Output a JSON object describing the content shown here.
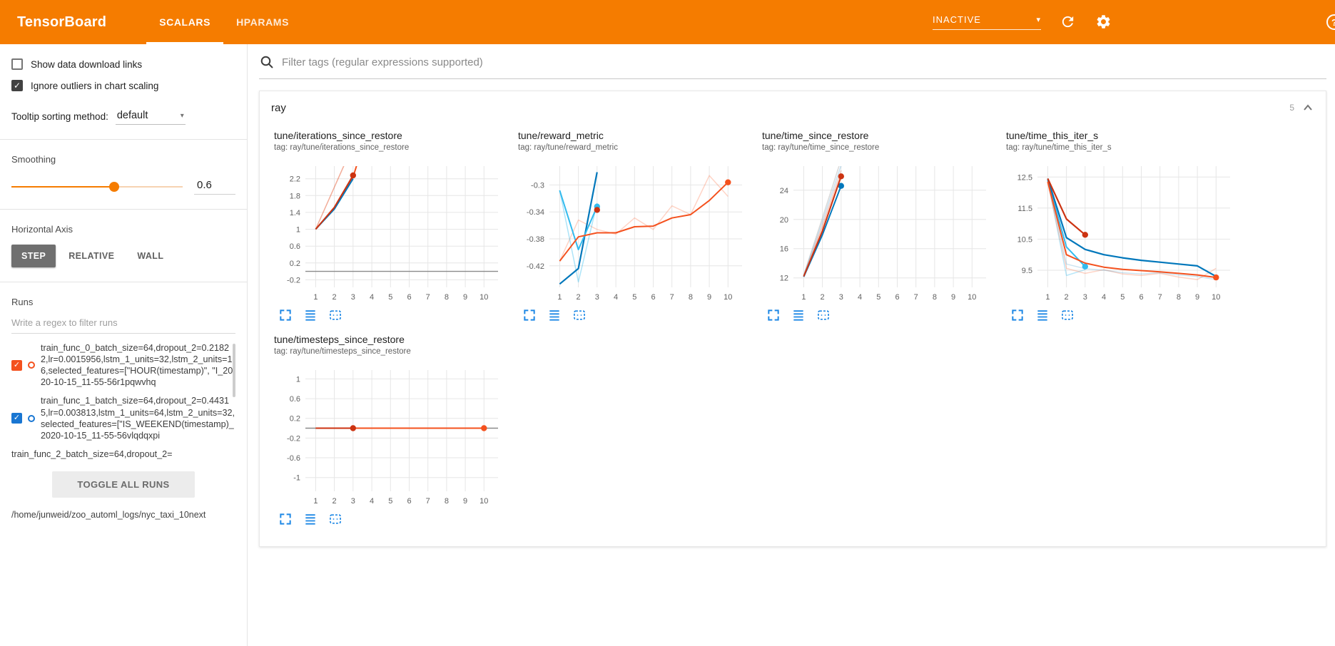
{
  "header": {
    "title": "TensorBoard",
    "tabs": [
      {
        "label": "SCALARS",
        "active": true
      },
      {
        "label": "HPARAMS",
        "active": false
      }
    ],
    "status_selector": {
      "value": "INACTIVE"
    },
    "icons": [
      "refresh-icon",
      "settings-gear-icon",
      "help-icon"
    ],
    "accent_color": "#f57c00"
  },
  "sidebar": {
    "options": [
      {
        "label": "Show data download links",
        "checked": false
      },
      {
        "label": "Ignore outliers in chart scaling",
        "checked": true
      }
    ],
    "tooltip_sort": {
      "label": "Tooltip sorting method:",
      "value": "default"
    },
    "smoothing": {
      "label": "Smoothing",
      "value": "0.6",
      "fraction": 0.6
    },
    "horizontal_axis": {
      "label": "Horizontal Axis",
      "options": [
        "STEP",
        "RELATIVE",
        "WALL"
      ],
      "selected": "STEP"
    },
    "runs": {
      "label": "Runs",
      "filter_placeholder": "Write a regex to filter runs",
      "items": [
        {
          "label": "train_func_0_batch_size=64,dropout_2=0.21822,lr=0.0015956,lstm_1_units=32,lstm_2_units=16,selected_features=[\"HOUR(timestamp)\", \"I_2020-10-15_11-55-56r1pqwvhq",
          "checked": true,
          "color": "#f4511e"
        },
        {
          "label": "train_func_1_batch_size=64,dropout_2=0.44315,lr=0.003813,lstm_1_units=64,lstm_2_units=32,selected_features=[\"IS_WEEKEND(timestamp)_2020-10-15_11-55-56vlqdqxpi",
          "checked": true,
          "color": "#1976d2"
        },
        {
          "label": "train_func_2_batch_size=64,dropout_2=",
          "checked": null,
          "color": null
        }
      ],
      "toggle_all_label": "TOGGLE ALL RUNS",
      "log_path": "/home/junweid/zoo_automl_logs/nyc_taxi_10next"
    }
  },
  "main": {
    "filter_placeholder": "Filter tags (regular expressions supported)",
    "group": {
      "name": "ray",
      "count": "5"
    }
  },
  "chart_data": [
    {
      "id": "c1",
      "type": "line",
      "title": "tune/iterations_since_restore",
      "tag": "tag: ray/tune/iterations_since_restore",
      "xlim": [
        0.45,
        10.75
      ],
      "ylim": [
        -0.38,
        2.5
      ],
      "xticks": [
        1,
        2,
        3,
        4,
        5,
        6,
        7,
        8,
        9,
        10
      ],
      "yticks": [
        -0.2,
        0.2,
        0.6,
        1,
        1.4,
        1.8,
        2.2
      ],
      "zero_line": 0,
      "series": [
        {
          "name": "run0 raw",
          "color": "#ff7043",
          "opacity": 0.3,
          "width": 1.5,
          "end_dot": false,
          "points": [
            [
              1,
              1
            ],
            [
              2,
              2
            ],
            [
              3,
              3
            ]
          ]
        },
        {
          "name": "run2 raw",
          "color": "#cc3311",
          "opacity": 0.25,
          "width": 1.5,
          "end_dot": false,
          "points": [
            [
              1,
              1
            ],
            [
              2,
              2
            ],
            [
              3,
              3
            ]
          ]
        },
        {
          "name": "run0 smoothed",
          "color": "#f4511e",
          "opacity": 1,
          "width": 2,
          "end_dot": false,
          "points": [
            [
              1,
              1
            ],
            [
              2,
              1.5
            ],
            [
              3,
              2.24
            ],
            [
              3.6,
              3.1
            ]
          ]
        },
        {
          "name": "run1 smoothed",
          "color": "#0077bb",
          "opacity": 1,
          "width": 2,
          "end_dot": false,
          "points": [
            [
              1,
              1
            ],
            [
              2,
              1.48
            ],
            [
              3,
              2.2
            ]
          ]
        },
        {
          "name": "run2 smoothed",
          "color": "#cc3311",
          "opacity": 1,
          "width": 2,
          "end_dot": true,
          "points": [
            [
              1,
              1
            ],
            [
              2,
              1.52
            ],
            [
              3,
              2.28
            ]
          ]
        }
      ]
    },
    {
      "id": "c2",
      "type": "line",
      "title": "tune/reward_metric",
      "tag": "tag: ray/tune/reward_metric",
      "xlim": [
        0.45,
        10.75
      ],
      "ylim": [
        -0.452,
        -0.272
      ],
      "xticks": [
        1,
        2,
        3,
        4,
        5,
        6,
        7,
        8,
        9,
        10
      ],
      "yticks": [
        -0.42,
        -0.38,
        -0.34,
        -0.3
      ],
      "series": [
        {
          "name": "run0 raw",
          "color": "#ff7043",
          "opacity": 0.3,
          "width": 1.5,
          "end_dot": false,
          "points": [
            [
              1,
              -0.413
            ],
            [
              2,
              -0.352
            ],
            [
              3,
              -0.366
            ],
            [
              4,
              -0.373
            ],
            [
              5,
              -0.349
            ],
            [
              6,
              -0.366
            ],
            [
              7,
              -0.331
            ],
            [
              8,
              -0.344
            ],
            [
              9,
              -0.286
            ],
            [
              10,
              -0.317
            ]
          ]
        },
        {
          "name": "run3 raw",
          "color": "#33bbee",
          "opacity": 0.4,
          "width": 1.5,
          "end_dot": false,
          "points": [
            [
              1,
              -0.308
            ],
            [
              2,
              -0.444
            ],
            [
              3,
              -0.327
            ]
          ]
        },
        {
          "name": "run1 smoothed",
          "color": "#0077bb",
          "opacity": 1,
          "width": 2.2,
          "end_dot": false,
          "points": [
            [
              1,
              -0.447
            ],
            [
              2,
              -0.424
            ],
            [
              3,
              -0.281
            ]
          ]
        },
        {
          "name": "run3 smoothed",
          "color": "#33bbee",
          "opacity": 1,
          "width": 2,
          "end_dot": true,
          "points": [
            [
              1,
              -0.308
            ],
            [
              2,
              -0.396
            ],
            [
              3,
              -0.332
            ]
          ]
        },
        {
          "name": "run2 final",
          "color": "#cc3311",
          "opacity": 1,
          "width": 2,
          "end_dot": true,
          "points": [
            [
              3,
              -0.337
            ]
          ]
        },
        {
          "name": "run0 smoothed",
          "color": "#f4511e",
          "opacity": 1,
          "width": 2,
          "end_dot": true,
          "points": [
            [
              1,
              -0.413
            ],
            [
              2,
              -0.377
            ],
            [
              3,
              -0.371
            ],
            [
              4,
              -0.371
            ],
            [
              5,
              -0.362
            ],
            [
              6,
              -0.361
            ],
            [
              7,
              -0.349
            ],
            [
              8,
              -0.344
            ],
            [
              9,
              -0.323
            ],
            [
              10,
              -0.296
            ]
          ]
        }
      ]
    },
    {
      "id": "c3",
      "type": "line",
      "title": "tune/time_since_restore",
      "tag": "tag: ray/tune/time_since_restore",
      "xlim": [
        0.45,
        10.75
      ],
      "ylim": [
        10.7,
        27.3
      ],
      "xticks": [
        1,
        2,
        3,
        4,
        5,
        6,
        7,
        8,
        9,
        10
      ],
      "yticks": [
        12,
        16,
        20,
        24
      ],
      "series": [
        {
          "name": "gray raw",
          "color": "#bbbbbb",
          "opacity": 0.55,
          "width": 1.5,
          "end_dot": false,
          "points": [
            [
              1,
              12.4
            ],
            [
              2,
              20.2
            ],
            [
              3,
              28.2
            ]
          ]
        },
        {
          "name": "run1 raw",
          "color": "#0077bb",
          "opacity": 0.22,
          "width": 1.5,
          "end_dot": false,
          "points": [
            [
              1,
              12.3
            ],
            [
              2,
              19.7
            ],
            [
              3,
              27.4
            ]
          ]
        },
        {
          "name": "run2 raw",
          "color": "#cc3311",
          "opacity": 0.22,
          "width": 1.5,
          "end_dot": false,
          "points": [
            [
              1,
              12.25
            ],
            [
              2,
              19.2
            ],
            [
              3,
              26.7
            ]
          ]
        },
        {
          "name": "run0 raw",
          "color": "#ff7043",
          "opacity": 0.3,
          "width": 1.5,
          "end_dot": false,
          "points": [
            [
              1,
              12.2
            ],
            [
              2,
              18.9
            ],
            [
              3,
              26.2
            ]
          ]
        },
        {
          "name": "run1 smoothed",
          "color": "#0077bb",
          "opacity": 1,
          "width": 2,
          "end_dot": true,
          "points": [
            [
              1,
              12.15
            ],
            [
              2,
              17.9
            ],
            [
              3,
              24.6
            ]
          ]
        },
        {
          "name": "run2 smoothed",
          "color": "#cc3311",
          "opacity": 1,
          "width": 2,
          "end_dot": true,
          "points": [
            [
              1,
              12.2
            ],
            [
              2,
              18.4
            ],
            [
              3,
              25.9
            ]
          ]
        }
      ]
    },
    {
      "id": "c4",
      "type": "line",
      "title": "tune/time_this_iter_s",
      "tag": "tag: ray/tune/time_this_iter_s",
      "xlim": [
        0.45,
        10.75
      ],
      "ylim": [
        8.95,
        12.85
      ],
      "xticks": [
        1,
        2,
        3,
        4,
        5,
        6,
        7,
        8,
        9,
        10
      ],
      "yticks": [
        9.5,
        10.5,
        11.5,
        12.5
      ],
      "series": [
        {
          "name": "run3 raw",
          "color": "#33bbee",
          "opacity": 0.35,
          "width": 1.5,
          "end_dot": false,
          "points": [
            [
              1,
              12.4
            ],
            [
              2,
              9.33
            ],
            [
              3,
              9.52
            ]
          ]
        },
        {
          "name": "run0 raw",
          "color": "#ff7043",
          "opacity": 0.3,
          "width": 1.5,
          "end_dot": false,
          "points": [
            [
              1,
              12.3
            ],
            [
              2,
              9.56
            ],
            [
              3,
              9.4
            ],
            [
              4,
              9.52
            ],
            [
              5,
              9.38
            ],
            [
              6,
              9.33
            ],
            [
              7,
              9.4
            ],
            [
              8,
              9.28
            ],
            [
              9,
              9.2
            ],
            [
              10,
              9.56
            ]
          ]
        },
        {
          "name": "run1 raw",
          "color": "#0077bb",
          "opacity": 0.2,
          "width": 1.5,
          "end_dot": false,
          "points": [
            [
              1,
              12.45
            ],
            [
              2,
              9.7
            ],
            [
              3,
              9.55
            ],
            [
              4,
              9.5
            ],
            [
              5,
              9.42
            ],
            [
              6,
              9.38
            ],
            [
              7,
              9.42
            ],
            [
              8,
              9.35
            ],
            [
              9,
              9.3
            ],
            [
              10,
              9.2
            ]
          ]
        },
        {
          "name": "run3 smoothed",
          "color": "#33bbee",
          "opacity": 1,
          "width": 2,
          "end_dot": true,
          "points": [
            [
              1,
              12.4
            ],
            [
              2,
              10.25
            ],
            [
              3,
              9.62
            ]
          ]
        },
        {
          "name": "run1 smoothed",
          "color": "#0077bb",
          "opacity": 1,
          "width": 2.2,
          "end_dot": false,
          "points": [
            [
              1,
              12.45
            ],
            [
              2,
              10.55
            ],
            [
              3,
              10.17
            ],
            [
              4,
              10
            ],
            [
              5,
              9.9
            ],
            [
              6,
              9.82
            ],
            [
              7,
              9.76
            ],
            [
              8,
              9.7
            ],
            [
              9,
              9.64
            ],
            [
              10,
              9.3
            ]
          ]
        },
        {
          "name": "run0 smoothed",
          "color": "#f4511e",
          "opacity": 1,
          "width": 2,
          "end_dot": true,
          "points": [
            [
              1,
              12.35
            ],
            [
              2,
              10
            ],
            [
              3,
              9.73
            ],
            [
              4,
              9.6
            ],
            [
              5,
              9.53
            ],
            [
              6,
              9.49
            ],
            [
              7,
              9.45
            ],
            [
              8,
              9.4
            ],
            [
              9,
              9.35
            ],
            [
              10,
              9.27
            ]
          ]
        },
        {
          "name": "run2 smoothed",
          "color": "#cc3311",
          "opacity": 1,
          "width": 2.2,
          "end_dot": true,
          "points": [
            [
              1,
              12.45
            ],
            [
              2,
              11.15
            ],
            [
              3,
              10.64
            ]
          ]
        }
      ]
    },
    {
      "id": "c5",
      "type": "line",
      "title": "tune/timesteps_since_restore",
      "tag": "tag: ray/tune/timesteps_since_restore",
      "xlim": [
        0.45,
        10.75
      ],
      "ylim": [
        -1.28,
        1.18
      ],
      "xticks": [
        1,
        2,
        3,
        4,
        5,
        6,
        7,
        8,
        9,
        10
      ],
      "yticks": [
        -1,
        -0.6,
        -0.2,
        0.2,
        0.6,
        1
      ],
      "zero_line": 0,
      "series": [
        {
          "name": "run0 smoothed",
          "color": "#f4511e",
          "opacity": 1,
          "width": 2,
          "end_dot": true,
          "points": [
            [
              1,
              0
            ],
            [
              10,
              0
            ]
          ]
        },
        {
          "name": "run2 smoothed",
          "color": "#cc3311",
          "opacity": 1,
          "width": 2,
          "end_dot": true,
          "points": [
            [
              1,
              0
            ],
            [
              3,
              0
            ]
          ]
        }
      ]
    }
  ]
}
